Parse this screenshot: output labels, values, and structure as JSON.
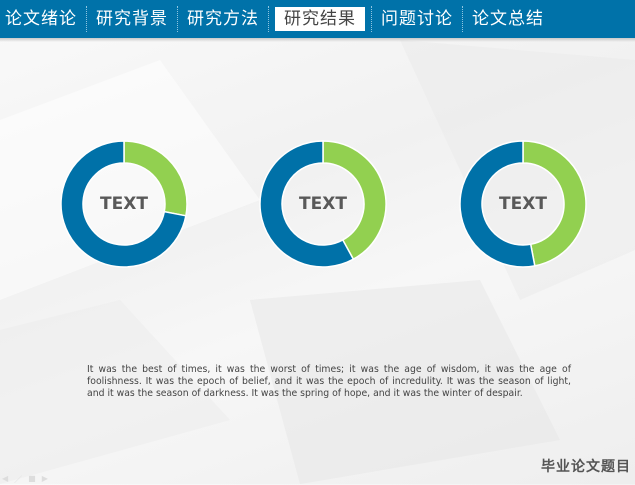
{
  "nav": {
    "tabs": [
      {
        "label": "论文绪论",
        "active": false
      },
      {
        "label": "研究背景",
        "active": false
      },
      {
        "label": "研究方法",
        "active": false
      },
      {
        "label": "研究结果",
        "active": true
      },
      {
        "label": "问题讨论",
        "active": false
      },
      {
        "label": "论文总结",
        "active": false
      }
    ]
  },
  "colors": {
    "nav_bg": "#0072a9",
    "donut_main": "#0071a8",
    "donut_accent": "#92d050"
  },
  "chart_data": [
    {
      "type": "pie",
      "donut": true,
      "center_label": "TEXT",
      "values": [
        28,
        72
      ],
      "colors": [
        "#92d050",
        "#0071a8"
      ]
    },
    {
      "type": "pie",
      "donut": true,
      "center_label": "TEXT",
      "values": [
        42,
        58
      ],
      "colors": [
        "#92d050",
        "#0071a8"
      ]
    },
    {
      "type": "pie",
      "donut": true,
      "center_label": "TEXT",
      "values": [
        47,
        53
      ],
      "colors": [
        "#92d050",
        "#0071a8"
      ]
    }
  ],
  "body_text": "It was the best of times, it was the worst of times; it was the age of wisdom, it was the age of foolishness. It was the epoch of belief, and it was the epoch of incredulity. It was the season of light, and it was the season of darkness. It was the spring of hope, and it was the winter of despair.",
  "footer": {
    "title": "毕业论文题目"
  },
  "slide_controls": [
    "prev-icon",
    "pen-icon",
    "menu-icon",
    "next-icon"
  ]
}
